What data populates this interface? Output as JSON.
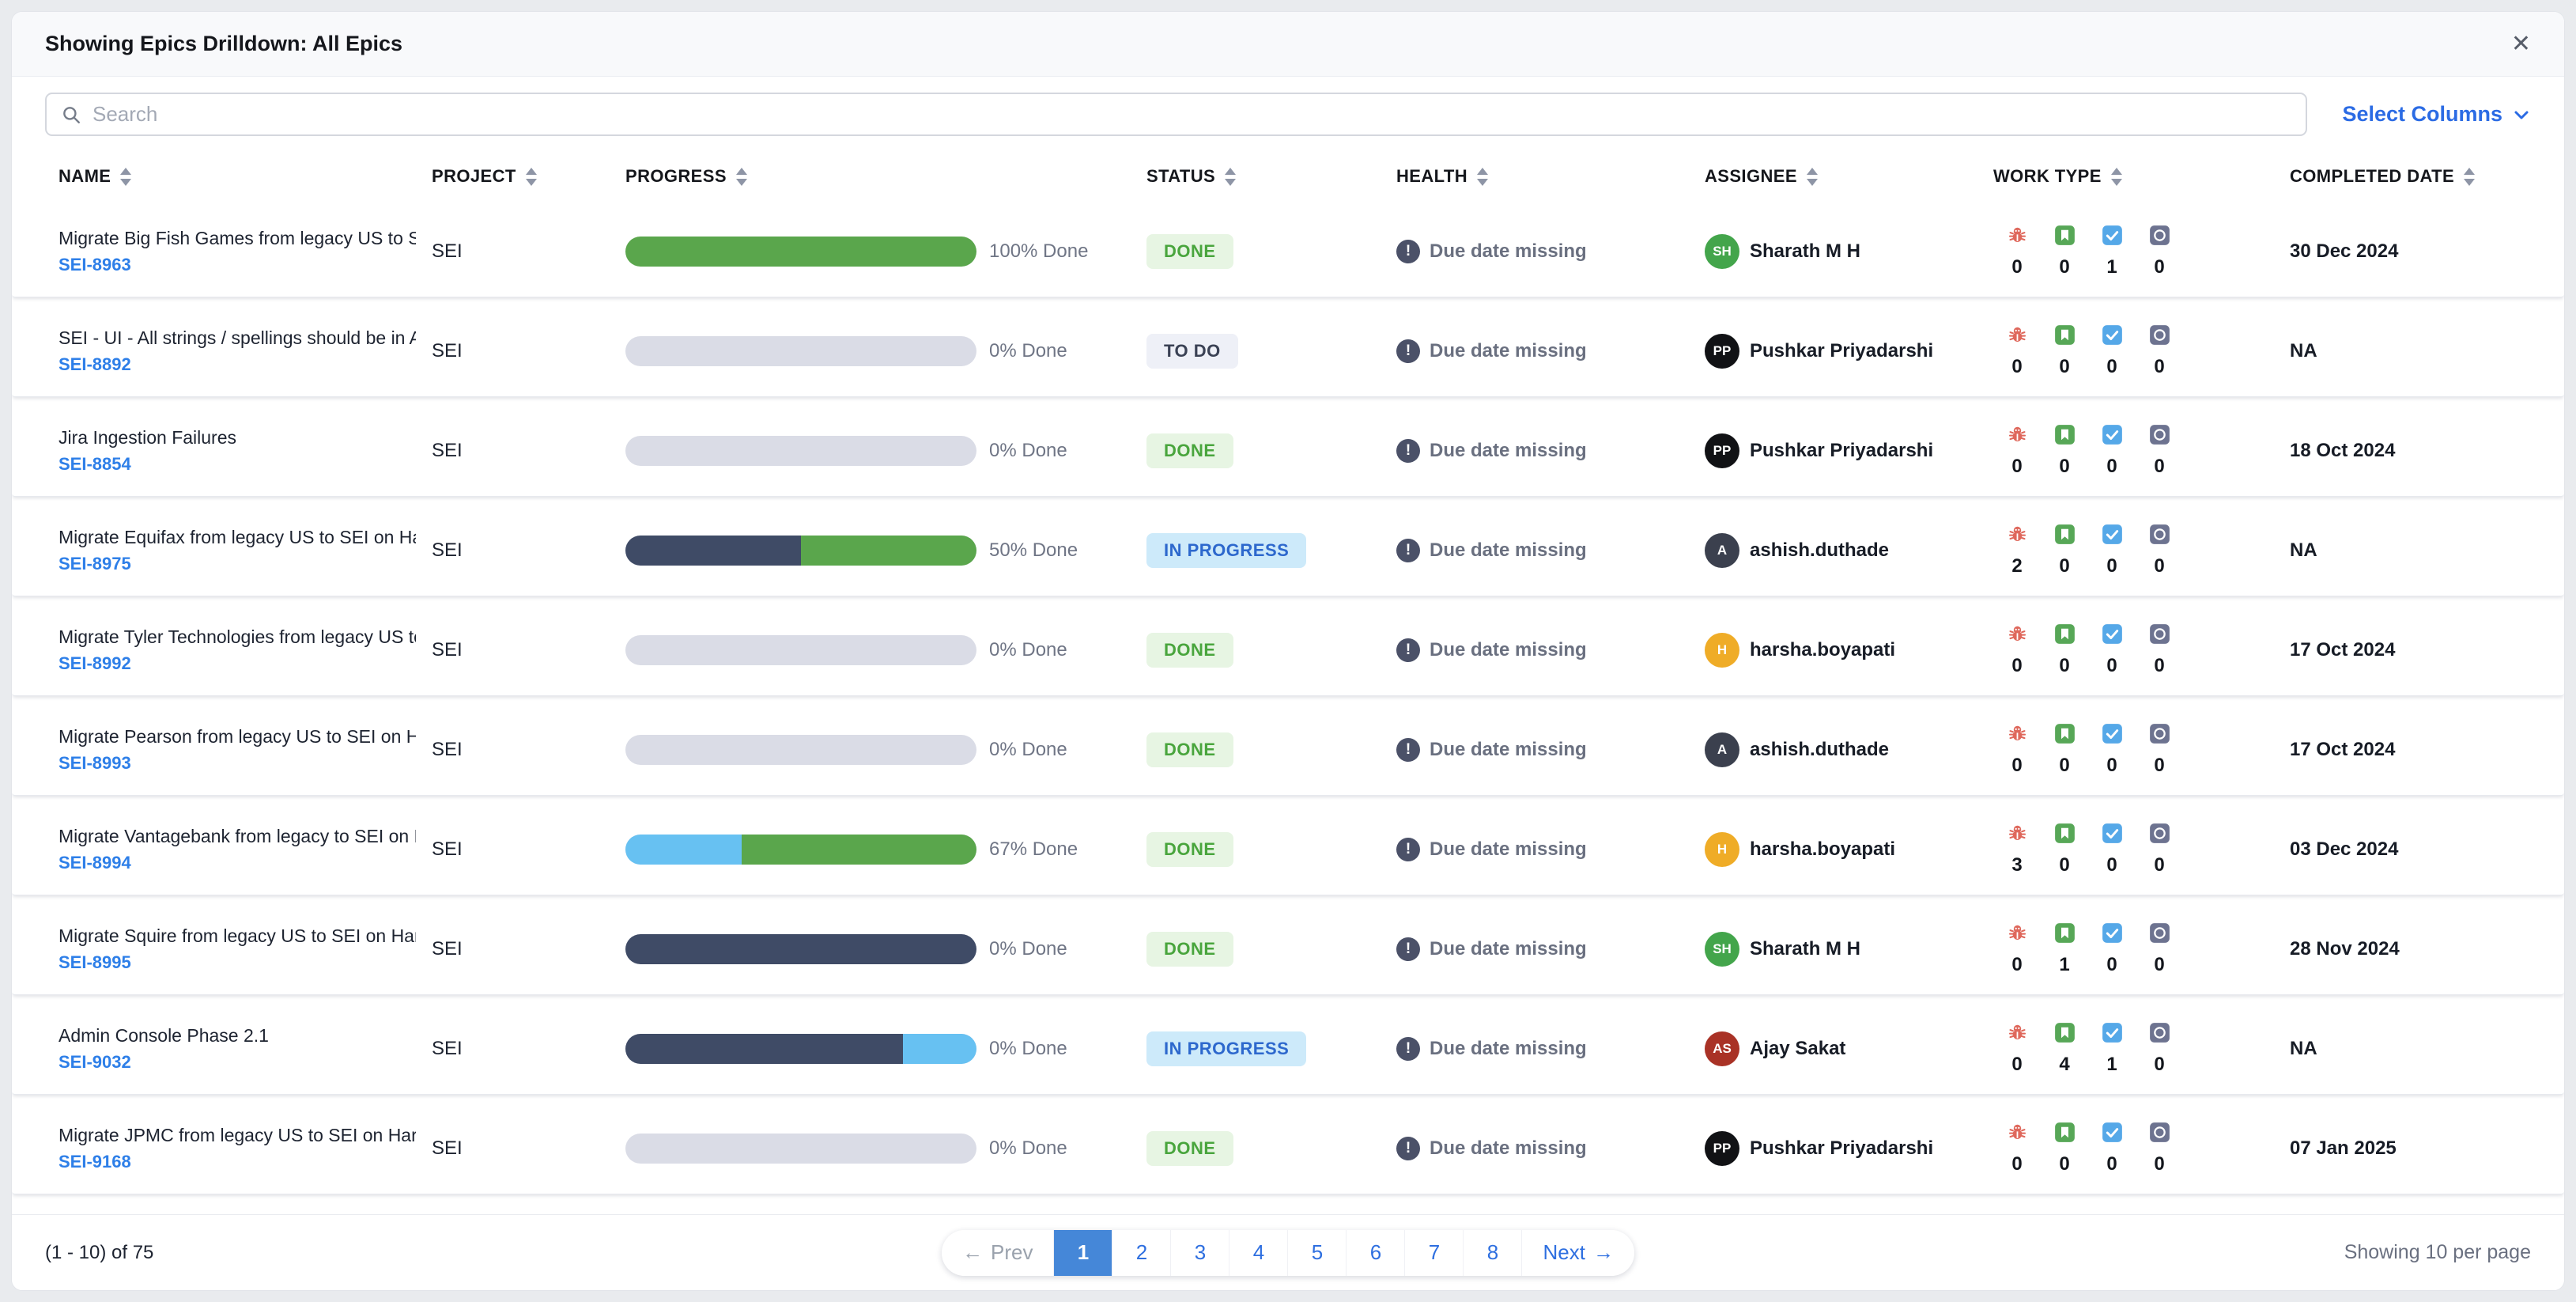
{
  "header": {
    "title": "Showing Epics Drilldown: All Epics",
    "close_icon": "✕"
  },
  "toolbar": {
    "search_placeholder": "Search",
    "select_columns_label": "Select Columns"
  },
  "colors": {
    "accent_blue": "#2b6be4",
    "progress_track": "#dadce6",
    "pagination_active_bg": "#4587d8"
  },
  "table": {
    "columns": [
      {
        "key": "name",
        "label": "NAME",
        "sortable": true
      },
      {
        "key": "project",
        "label": "PROJECT",
        "sortable": true
      },
      {
        "key": "progress",
        "label": "PROGRESS",
        "sortable": true
      },
      {
        "key": "status",
        "label": "STATUS",
        "sortable": true
      },
      {
        "key": "health",
        "label": "HEALTH",
        "sortable": true
      },
      {
        "key": "assignee",
        "label": "ASSIGNEE",
        "sortable": true
      },
      {
        "key": "worktype",
        "label": "WORK TYPE",
        "sortable": true
      },
      {
        "key": "completed",
        "label": "COMPLETED DATE",
        "sortable": true
      }
    ],
    "work_type_icons": [
      "bug",
      "story",
      "task",
      "other"
    ],
    "rows": [
      {
        "name": "Migrate Big Fish Games from legacy US to SEI ...",
        "id": "SEI-8963",
        "project": "SEI",
        "progress_label": "100% Done",
        "progress_segments": [
          {
            "color": "#5aa64c",
            "pct": 100
          }
        ],
        "status": {
          "label": "DONE",
          "bg": "#e7f5e3",
          "fg": "#49a53d"
        },
        "health": "Due date missing",
        "assignee": {
          "initials": "SH",
          "name": "Sharath M H",
          "color": "#43a54b"
        },
        "work_counts": [
          0,
          0,
          1,
          0
        ],
        "completed": "30 Dec 2024"
      },
      {
        "name": "SEI - UI - All strings / spellings should be in A...",
        "id": "SEI-8892",
        "project": "SEI",
        "progress_label": "0% Done",
        "progress_segments": [],
        "status": {
          "label": "TO DO",
          "bg": "#eef0f7",
          "fg": "#3a4154"
        },
        "health": "Due date missing",
        "assignee": {
          "initials": "PP",
          "name": "Pushkar Priyadarshi",
          "color": "#111215"
        },
        "work_counts": [
          0,
          0,
          0,
          0
        ],
        "completed": "NA"
      },
      {
        "name": "Jira Ingestion Failures",
        "id": "SEI-8854",
        "project": "SEI",
        "progress_label": "0% Done",
        "progress_segments": [],
        "status": {
          "label": "DONE",
          "bg": "#e7f5e3",
          "fg": "#49a53d"
        },
        "health": "Due date missing",
        "assignee": {
          "initials": "PP",
          "name": "Pushkar Priyadarshi",
          "color": "#111215"
        },
        "work_counts": [
          0,
          0,
          0,
          0
        ],
        "completed": "18 Oct 2024"
      },
      {
        "name": "Migrate Equifax from legacy US to SEI on Harn...",
        "id": "SEI-8975",
        "project": "SEI",
        "progress_label": "50% Done",
        "progress_segments": [
          {
            "color": "#3f4b66",
            "pct": 50
          },
          {
            "color": "#5aa64c",
            "pct": 50
          }
        ],
        "status": {
          "label": "IN PROGRESS",
          "bg": "#cdeafa",
          "fg": "#2d68cd"
        },
        "health": "Due date missing",
        "assignee": {
          "initials": "A",
          "name": "ashish.duthade",
          "color": "#3b404e"
        },
        "work_counts": [
          2,
          0,
          0,
          0
        ],
        "completed": "NA"
      },
      {
        "name": "Migrate Tyler Technologies from legacy US to ...",
        "id": "SEI-8992",
        "project": "SEI",
        "progress_label": "0% Done",
        "progress_segments": [],
        "status": {
          "label": "DONE",
          "bg": "#e7f5e3",
          "fg": "#49a53d"
        },
        "health": "Due date missing",
        "assignee": {
          "initials": "H",
          "name": "harsha.boyapati",
          "color": "#efac27"
        },
        "work_counts": [
          0,
          0,
          0,
          0
        ],
        "completed": "17 Oct 2024"
      },
      {
        "name": "Migrate Pearson from legacy US to SEI on Har...",
        "id": "SEI-8993",
        "project": "SEI",
        "progress_label": "0% Done",
        "progress_segments": [],
        "status": {
          "label": "DONE",
          "bg": "#e7f5e3",
          "fg": "#49a53d"
        },
        "health": "Due date missing",
        "assignee": {
          "initials": "A",
          "name": "ashish.duthade",
          "color": "#3b404e"
        },
        "work_counts": [
          0,
          0,
          0,
          0
        ],
        "completed": "17 Oct 2024"
      },
      {
        "name": "Migrate Vantagebank from legacy to SEI on Ha...",
        "id": "SEI-8994",
        "project": "SEI",
        "progress_label": "67% Done",
        "progress_segments": [
          {
            "color": "#67c1f2",
            "pct": 33
          },
          {
            "color": "#5aa64c",
            "pct": 67
          }
        ],
        "status": {
          "label": "DONE",
          "bg": "#e7f5e3",
          "fg": "#49a53d"
        },
        "health": "Due date missing",
        "assignee": {
          "initials": "H",
          "name": "harsha.boyapati",
          "color": "#efac27"
        },
        "work_counts": [
          3,
          0,
          0,
          0
        ],
        "completed": "03 Dec 2024"
      },
      {
        "name": "Migrate Squire from legacy US to SEI on Harne...",
        "id": "SEI-8995",
        "project": "SEI",
        "progress_label": "0% Done",
        "progress_segments": [
          {
            "color": "#3f4b66",
            "pct": 100
          }
        ],
        "status": {
          "label": "DONE",
          "bg": "#e7f5e3",
          "fg": "#49a53d"
        },
        "health": "Due date missing",
        "assignee": {
          "initials": "SH",
          "name": "Sharath M H",
          "color": "#43a54b"
        },
        "work_counts": [
          0,
          1,
          0,
          0
        ],
        "completed": "28 Nov 2024"
      },
      {
        "name": "Admin Console Phase 2.1",
        "id": "SEI-9032",
        "project": "SEI",
        "progress_label": "0% Done",
        "progress_segments": [
          {
            "color": "#3f4b66",
            "pct": 79
          },
          {
            "color": "#67c1f2",
            "pct": 21
          }
        ],
        "status": {
          "label": "IN PROGRESS",
          "bg": "#cdeafa",
          "fg": "#2d68cd"
        },
        "health": "Due date missing",
        "assignee": {
          "initials": "AS",
          "name": "Ajay Sakat",
          "color": "#a93226"
        },
        "work_counts": [
          0,
          4,
          1,
          0
        ],
        "completed": "NA"
      },
      {
        "name": "Migrate JPMC from legacy US to SEI on Harne...",
        "id": "SEI-9168",
        "project": "SEI",
        "progress_label": "0% Done",
        "progress_segments": [],
        "status": {
          "label": "DONE",
          "bg": "#e7f5e3",
          "fg": "#49a53d"
        },
        "health": "Due date missing",
        "assignee": {
          "initials": "PP",
          "name": "Pushkar Priyadarshi",
          "color": "#111215"
        },
        "work_counts": [
          0,
          0,
          0,
          0
        ],
        "completed": "07 Jan 2025"
      }
    ]
  },
  "footer": {
    "range_label": "(1 - 10) of 75",
    "prev_label": "Prev",
    "prev_arrow": "←",
    "next_label": "Next",
    "next_arrow": "→",
    "pages": [
      "1",
      "2",
      "3",
      "4",
      "5",
      "6",
      "7",
      "8"
    ],
    "active_page": "1",
    "per_page_label": "Showing 10 per page"
  }
}
